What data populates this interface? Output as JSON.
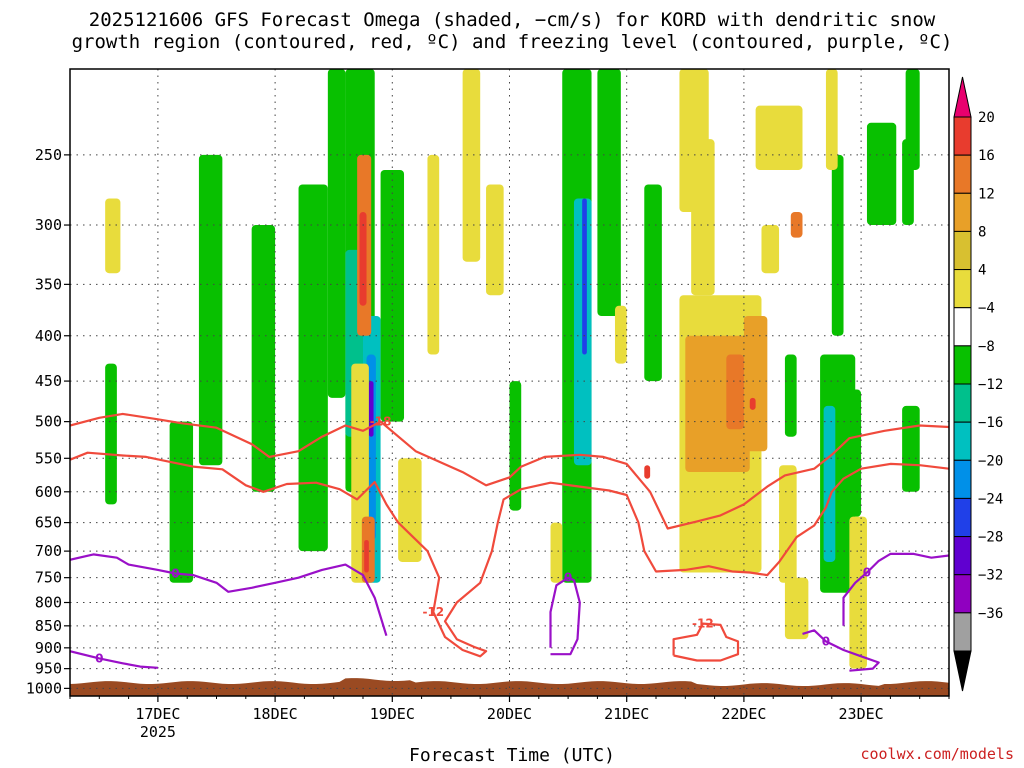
{
  "chart_data": {
    "type": "heatmap",
    "title_line1": "2025121606 GFS Forecast Omega (shaded, −cm/s) for KORD with dendritic snow",
    "title_line2": "growth region (contoured, red, ºC) and freezing level (contoured, purple, ºC)",
    "xlabel": "Forecast Time (UTC)",
    "ylabel": "",
    "x_ticks": [
      {
        "label": "17DEC",
        "sub": "2025",
        "day": 17
      },
      {
        "label": "18DEC",
        "sub": "",
        "day": 18
      },
      {
        "label": "19DEC",
        "sub": "",
        "day": 19
      },
      {
        "label": "20DEC",
        "sub": "",
        "day": 20
      },
      {
        "label": "21DEC",
        "sub": "",
        "day": 21
      },
      {
        "label": "22DEC",
        "sub": "",
        "day": 22
      },
      {
        "label": "23DEC",
        "sub": "",
        "day": 23
      }
    ],
    "x_range_days": [
      16.25,
      23.75
    ],
    "y_ticks": [
      250,
      300,
      350,
      400,
      450,
      500,
      550,
      600,
      650,
      700,
      750,
      800,
      850,
      900,
      950,
      1000
    ],
    "y_range_hpa": [
      200,
      1020
    ],
    "colorbar": {
      "labels": [
        "20",
        "16",
        "12",
        "8",
        "4",
        "−4",
        "−8",
        "−12",
        "−16",
        "−20",
        "−24",
        "−28",
        "−32",
        "−36"
      ],
      "colors": [
        "#e8006e",
        "#e83c2e",
        "#e87828",
        "#e8a028",
        "#d8c030",
        "#e8dc3c",
        "#ffffff",
        "#08c000",
        "#00c08c",
        "#00c0c0",
        "#0090e8",
        "#2040e8",
        "#6000d0",
        "#9000c0",
        "#a0a0a0",
        "#000000"
      ]
    },
    "contours": {
      "dgz_red": [
        {
          "value": -18,
          "label": "-18",
          "points": [
            [
              16.25,
              505
            ],
            [
              16.5,
              495
            ],
            [
              16.7,
              490
            ],
            [
              17.0,
              497
            ],
            [
              17.2,
              502
            ],
            [
              17.5,
              508
            ],
            [
              17.8,
              530
            ],
            [
              17.95,
              548
            ],
            [
              18.2,
              540
            ],
            [
              18.4,
              520
            ],
            [
              18.6,
              505
            ],
            [
              18.75,
              512
            ],
            [
              18.9,
              500
            ],
            [
              19.2,
              540
            ],
            [
              19.6,
              570
            ],
            [
              19.8,
              590
            ],
            [
              20.0,
              578
            ],
            [
              20.1,
              562
            ],
            [
              20.3,
              548
            ],
            [
              20.6,
              545
            ],
            [
              20.8,
              548
            ],
            [
              21.0,
              558
            ],
            [
              21.2,
              600
            ],
            [
              21.35,
              660
            ],
            [
              21.6,
              648
            ],
            [
              21.8,
              638
            ],
            [
              22.0,
              620
            ],
            [
              22.2,
              592
            ],
            [
              22.35,
              575
            ],
            [
              22.6,
              565
            ],
            [
              22.75,
              545
            ],
            [
              22.9,
              522
            ],
            [
              23.2,
              512
            ],
            [
              23.5,
              505
            ],
            [
              23.75,
              507
            ]
          ]
        },
        {
          "value": -12,
          "label": "-12",
          "points": [
            [
              16.25,
              552
            ],
            [
              16.4,
              542
            ],
            [
              16.7,
              546
            ],
            [
              16.9,
              548
            ],
            [
              17.1,
              555
            ],
            [
              17.3,
              562
            ],
            [
              17.55,
              566
            ],
            [
              17.75,
              590
            ],
            [
              17.9,
              600
            ],
            [
              18.1,
              588
            ],
            [
              18.35,
              586
            ],
            [
              18.55,
              596
            ],
            [
              18.7,
              612
            ],
            [
              18.85,
              585
            ],
            [
              18.95,
              620
            ],
            [
              19.05,
              650
            ],
            [
              19.3,
              700
            ],
            [
              19.4,
              750
            ],
            [
              19.35,
              820
            ],
            [
              19.45,
              875
            ],
            [
              19.6,
              905
            ],
            [
              19.75,
              920
            ],
            [
              19.8,
              908
            ],
            [
              19.7,
              898
            ],
            [
              19.55,
              880
            ],
            [
              19.45,
              840
            ],
            [
              19.55,
              800
            ],
            [
              19.75,
              760
            ],
            [
              19.85,
              700
            ],
            [
              19.9,
              650
            ],
            [
              19.95,
              612
            ],
            [
              20.1,
              596
            ],
            [
              20.35,
              586
            ],
            [
              20.6,
              592
            ],
            [
              20.85,
              598
            ],
            [
              21.0,
              605
            ],
            [
              21.1,
              650
            ],
            [
              21.15,
              700
            ],
            [
              21.25,
              738
            ],
            [
              21.5,
              735
            ],
            [
              21.7,
              728
            ],
            [
              21.9,
              738
            ],
            [
              22.05,
              740
            ],
            [
              22.2,
              745
            ],
            [
              22.3,
              720
            ],
            [
              22.45,
              675
            ],
            [
              22.6,
              655
            ],
            [
              22.7,
              625
            ],
            [
              22.75,
              600
            ],
            [
              22.85,
              580
            ],
            [
              23.0,
              565
            ],
            [
              23.25,
              558
            ],
            [
              23.5,
              560
            ],
            [
              23.75,
              565
            ]
          ]
        },
        {
          "value": -12,
          "label": "-12",
          "points": [
            [
              21.4,
              918
            ],
            [
              21.4,
              880
            ],
            [
              21.6,
              870
            ],
            [
              21.65,
              845
            ],
            [
              21.8,
              848
            ],
            [
              21.85,
              875
            ],
            [
              21.95,
              885
            ],
            [
              21.95,
              915
            ],
            [
              21.8,
              930
            ],
            [
              21.6,
              930
            ],
            [
              21.4,
              918
            ]
          ]
        }
      ],
      "freezing_purple": [
        {
          "value": 0,
          "label": "0",
          "points": [
            [
              16.25,
              716
            ],
            [
              16.45,
              706
            ],
            [
              16.65,
              712
            ],
            [
              16.75,
              725
            ],
            [
              17.0,
              735
            ],
            [
              17.15,
              742
            ],
            [
              17.3,
              745
            ],
            [
              17.5,
              760
            ],
            [
              17.6,
              778
            ],
            [
              17.8,
              770
            ],
            [
              18.0,
              760
            ],
            [
              18.2,
              750
            ],
            [
              18.4,
              735
            ],
            [
              18.6,
              725
            ],
            [
              18.75,
              745
            ],
            [
              18.85,
              790
            ],
            [
              18.95,
              872
            ]
          ]
        },
        {
          "value": 0,
          "label": "0",
          "points": [
            [
              20.35,
              900
            ],
            [
              20.35,
              820
            ],
            [
              20.4,
              765
            ],
            [
              20.5,
              750
            ],
            [
              20.55,
              755
            ],
            [
              20.6,
              800
            ],
            [
              20.58,
              880
            ],
            [
              20.52,
              915
            ],
            [
              20.35,
              915
            ]
          ]
        },
        {
          "value": 0,
          "label": "0",
          "points": [
            [
              22.85,
              850
            ],
            [
              22.85,
              790
            ],
            [
              22.95,
              760
            ],
            [
              23.05,
              740
            ],
            [
              23.15,
              718
            ],
            [
              23.25,
              705
            ],
            [
              23.45,
              705
            ],
            [
              23.6,
              712
            ],
            [
              23.75,
              708
            ]
          ]
        },
        {
          "value": 0,
          "label": "0",
          "points": [
            [
              16.25,
              908
            ],
            [
              16.5,
              925
            ],
            [
              16.7,
              937
            ],
            [
              16.85,
              945
            ],
            [
              17.0,
              948
            ]
          ]
        },
        {
          "value": 0,
          "label": "0",
          "points": [
            [
              22.5,
              868
            ],
            [
              22.6,
              860
            ],
            [
              22.7,
              885
            ],
            [
              22.85,
              905
            ],
            [
              23.0,
              920
            ],
            [
              23.15,
              935
            ],
            [
              23.1,
              950
            ],
            [
              22.9,
              955
            ]
          ]
        }
      ]
    },
    "omega_shaded_regions": [
      {
        "color": "#08c000",
        "t0": 16.55,
        "t1": 16.65,
        "p0": 430,
        "p1": 620
      },
      {
        "color": "#08c000",
        "t0": 17.1,
        "t1": 17.3,
        "p0": 500,
        "p1": 760
      },
      {
        "color": "#08c000",
        "t0": 17.35,
        "t1": 17.55,
        "p0": 250,
        "p1": 560
      },
      {
        "color": "#08c000",
        "t0": 17.8,
        "t1": 18.0,
        "p0": 300,
        "p1": 600
      },
      {
        "color": "#08c000",
        "t0": 18.2,
        "t1": 18.45,
        "p0": 270,
        "p1": 700
      },
      {
        "color": "#08c000",
        "t0": 18.45,
        "t1": 18.6,
        "p0": 200,
        "p1": 470
      },
      {
        "color": "#08c000",
        "t0": 18.6,
        "t1": 18.85,
        "p0": 200,
        "p1": 600
      },
      {
        "color": "#00c08c",
        "t0": 18.6,
        "t1": 18.8,
        "p0": 320,
        "p1": 520
      },
      {
        "color": "#00c0c0",
        "t0": 18.75,
        "t1": 18.9,
        "p0": 380,
        "p1": 760
      },
      {
        "color": "#0090e8",
        "t0": 18.78,
        "t1": 18.86,
        "p0": 420,
        "p1": 680
      },
      {
        "color": "#6000d0",
        "t0": 18.8,
        "t1": 18.84,
        "p0": 450,
        "p1": 520
      },
      {
        "color": "#08c000",
        "t0": 18.9,
        "t1": 19.1,
        "p0": 260,
        "p1": 500
      },
      {
        "color": "#08c000",
        "t0": 20.0,
        "t1": 20.1,
        "p0": 450,
        "p1": 630
      },
      {
        "color": "#08c000",
        "t0": 20.45,
        "t1": 20.7,
        "p0": 200,
        "p1": 760
      },
      {
        "color": "#00c0c0",
        "t0": 20.55,
        "t1": 20.7,
        "p0": 280,
        "p1": 560
      },
      {
        "color": "#2040e8",
        "t0": 20.62,
        "t1": 20.66,
        "p0": 280,
        "p1": 420
      },
      {
        "color": "#08c000",
        "t0": 20.75,
        "t1": 20.95,
        "p0": 200,
        "p1": 380
      },
      {
        "color": "#08c000",
        "t0": 21.15,
        "t1": 21.3,
        "p0": 270,
        "p1": 450
      },
      {
        "color": "#08c000",
        "t0": 22.35,
        "t1": 22.45,
        "p0": 420,
        "p1": 520
      },
      {
        "color": "#08c000",
        "t0": 22.65,
        "t1": 22.95,
        "p0": 420,
        "p1": 780
      },
      {
        "color": "#00c0c0",
        "t0": 22.68,
        "t1": 22.78,
        "p0": 480,
        "p1": 720
      },
      {
        "color": "#08c000",
        "t0": 22.85,
        "t1": 23.0,
        "p0": 460,
        "p1": 640
      },
      {
        "color": "#08c000",
        "t0": 23.05,
        "t1": 23.3,
        "p0": 230,
        "p1": 300
      },
      {
        "color": "#08c000",
        "t0": 23.35,
        "t1": 23.45,
        "p0": 240,
        "p1": 300
      },
      {
        "color": "#08c000",
        "t0": 23.38,
        "t1": 23.5,
        "p0": 200,
        "p1": 260
      },
      {
        "color": "#08c000",
        "t0": 22.75,
        "t1": 22.85,
        "p0": 250,
        "p1": 400
      },
      {
        "color": "#08c000",
        "t0": 23.35,
        "t1": 23.5,
        "p0": 480,
        "p1": 600
      },
      {
        "color": "#e8dc3c",
        "t0": 16.55,
        "t1": 16.68,
        "p0": 280,
        "p1": 340
      },
      {
        "color": "#e8dc3c",
        "t0": 18.65,
        "t1": 18.8,
        "p0": 430,
        "p1": 760
      },
      {
        "color": "#e8dc3c",
        "t0": 19.05,
        "t1": 19.25,
        "p0": 550,
        "p1": 720
      },
      {
        "color": "#e8dc3c",
        "t0": 19.3,
        "t1": 19.4,
        "p0": 250,
        "p1": 420
      },
      {
        "color": "#e8dc3c",
        "t0": 19.6,
        "t1": 19.75,
        "p0": 200,
        "p1": 330
      },
      {
        "color": "#e8dc3c",
        "t0": 19.8,
        "t1": 19.95,
        "p0": 270,
        "p1": 360
      },
      {
        "color": "#e8dc3c",
        "t0": 20.35,
        "t1": 20.45,
        "p0": 650,
        "p1": 760
      },
      {
        "color": "#e8dc3c",
        "t0": 20.9,
        "t1": 21.0,
        "p0": 370,
        "p1": 430
      },
      {
        "color": "#e8dc3c",
        "t0": 21.45,
        "t1": 21.7,
        "p0": 200,
        "p1": 290
      },
      {
        "color": "#e8dc3c",
        "t0": 21.55,
        "t1": 21.75,
        "p0": 240,
        "p1": 360
      },
      {
        "color": "#e8dc3c",
        "t0": 21.45,
        "t1": 22.15,
        "p0": 360,
        "p1": 740
      },
      {
        "color": "#e8dc3c",
        "t0": 22.1,
        "t1": 22.5,
        "p0": 220,
        "p1": 260
      },
      {
        "color": "#e8dc3c",
        "t0": 22.15,
        "t1": 22.3,
        "p0": 300,
        "p1": 340
      },
      {
        "color": "#e8dc3c",
        "t0": 22.3,
        "t1": 22.45,
        "p0": 560,
        "p1": 760
      },
      {
        "color": "#e8dc3c",
        "t0": 22.35,
        "t1": 22.55,
        "p0": 750,
        "p1": 880
      },
      {
        "color": "#e8dc3c",
        "t0": 22.7,
        "t1": 22.8,
        "p0": 200,
        "p1": 260
      },
      {
        "color": "#e8dc3c",
        "t0": 22.9,
        "t1": 23.05,
        "p0": 640,
        "p1": 950
      },
      {
        "color": "#e8a028",
        "t0": 21.5,
        "t1": 22.05,
        "p0": 400,
        "p1": 570
      },
      {
        "color": "#e8a028",
        "t0": 22.0,
        "t1": 22.2,
        "p0": 380,
        "p1": 540
      },
      {
        "color": "#e87828",
        "t0": 21.85,
        "t1": 22.0,
        "p0": 420,
        "p1": 510
      },
      {
        "color": "#e83c2e",
        "t0": 22.05,
        "t1": 22.1,
        "p0": 470,
        "p1": 485
      },
      {
        "color": "#e87828",
        "t0": 18.7,
        "t1": 18.82,
        "p0": 250,
        "p1": 400
      },
      {
        "color": "#e83c2e",
        "t0": 18.72,
        "t1": 18.78,
        "p0": 290,
        "p1": 370
      },
      {
        "color": "#e87828",
        "t0": 18.74,
        "t1": 18.85,
        "p0": 640,
        "p1": 760
      },
      {
        "color": "#e83c2e",
        "t0": 18.76,
        "t1": 18.8,
        "p0": 680,
        "p1": 740
      },
      {
        "color": "#e87828",
        "t0": 22.4,
        "t1": 22.5,
        "p0": 290,
        "p1": 310
      },
      {
        "color": "#e83c2e",
        "t0": 21.15,
        "t1": 21.2,
        "p0": 560,
        "p1": 580
      }
    ],
    "terrain_hpa": 985
  },
  "credit": "coolwx.com/models"
}
